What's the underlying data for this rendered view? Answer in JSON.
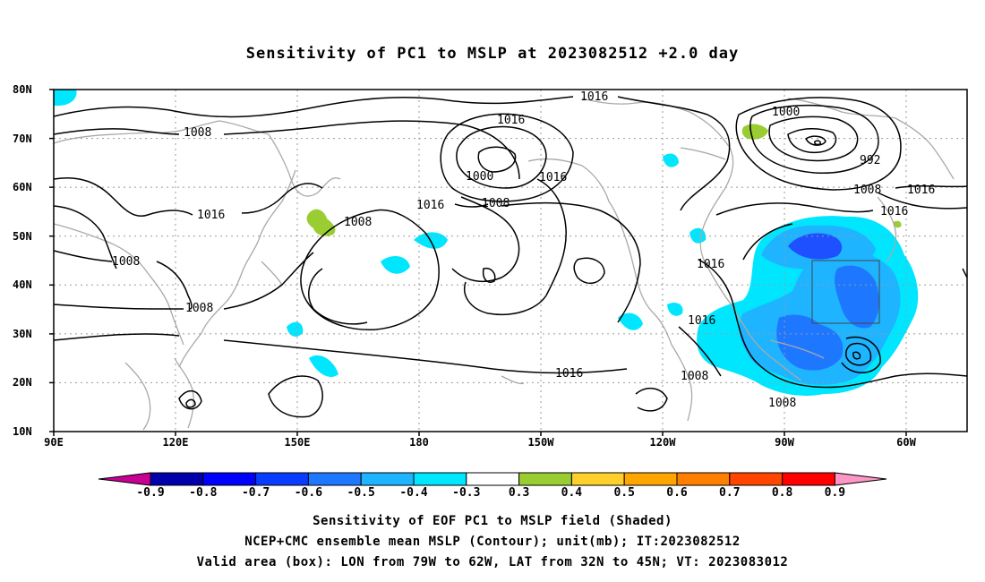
{
  "title": "Sensitivity of PC1 to MSLP at 2023082512 +2.0 day",
  "lat_labels": [
    "80N",
    "70N",
    "60N",
    "50N",
    "40N",
    "30N",
    "20N",
    "10N"
  ],
  "lon_labels": [
    "90E",
    "120E",
    "150E",
    "180",
    "150W",
    "120W",
    "90W",
    "60W"
  ],
  "contour_labels": [
    "1016",
    "1008",
    "1000",
    "1016",
    "1008",
    "1016",
    "1008",
    "1008",
    "1008",
    "1016",
    "1016",
    "1000",
    "992",
    "1008",
    "1016",
    "1016",
    "1016",
    "1016",
    "1016",
    "1008",
    "1008"
  ],
  "colorbar": {
    "labels": [
      "-0.9",
      "-0.8",
      "-0.7",
      "-0.6",
      "-0.5",
      "-0.4",
      "-0.3",
      "0.3",
      "0.4",
      "0.5",
      "0.6",
      "0.7",
      "0.8",
      "0.9"
    ],
    "colors": [
      "#0000aa",
      "#0000ff",
      "#0a3cff",
      "#1e78ff",
      "#1eb4ff",
      "#00e6ff",
      "#ffffff",
      "#9acd32",
      "#ffd02b",
      "#ffa500",
      "#ff7f00",
      "#ff4500",
      "#ff0000"
    ],
    "under_color": "#c80096",
    "over_color": "#ff96c8"
  },
  "captions": [
    "Sensitivity of EOF PC1 to MSLP field (Shaded)",
    "NCEP+CMC ensemble mean MSLP (Contour); unit(mb); IT:2023082512",
    "Valid area (box): LON from 79W to 62W, LAT from 32N to 45N; VT: 2023083012"
  ],
  "map_colors": {
    "coast": "#a9a9a9",
    "contour": "#000000",
    "grid": "#9a9a9a",
    "blue_dark": "#1e50ff",
    "blue_mid": "#1e9bff",
    "cyan": "#00e6ff",
    "green": "#9acd32"
  }
}
